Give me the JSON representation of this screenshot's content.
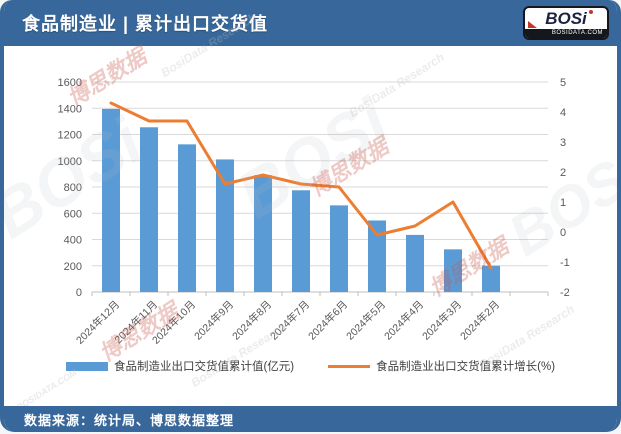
{
  "header": {
    "title": "食品制造业 | 累计出口交货值",
    "logo_text": "BOSi",
    "logo_sub": "BOSIDATA.COM"
  },
  "footer": {
    "source": "数据来源：统计局、博思数据整理"
  },
  "watermark": {
    "logo": "BOSi",
    "brand_cn": "博思数据",
    "brand_en": "BosiData Research",
    "site": "BOSIDATA.COM"
  },
  "colors": {
    "header_bg": "#38689B",
    "bar": "#5B9BD5",
    "line": "#ED7D31",
    "grid": "#D9D9D9",
    "axis_line": "#BFBFBF",
    "axis_text": "#595959",
    "watermark_red": "#C85348",
    "watermark_gray": "#B9BCC2"
  },
  "chart_data": {
    "type": "bar",
    "subtype": "bar+line combo, dual axis",
    "categories": [
      "2024年12月",
      "2024年11月",
      "2024年10月",
      "2024年9月",
      "2024年8月",
      "2024年7月",
      "2024年6月",
      "2024年5月",
      "2024年4月",
      "2024年3月",
      "2024年2月"
    ],
    "series": [
      {
        "name": "食品制造业出口交货值累计值(亿元)",
        "type": "bar",
        "axis": "left",
        "values": [
          1395,
          1255,
          1125,
          1010,
          890,
          775,
          660,
          545,
          435,
          325,
          200
        ]
      },
      {
        "name": "食品制造业出口交货值累计增长(%)",
        "type": "line",
        "axis": "right",
        "values": [
          4.3,
          3.7,
          3.7,
          1.6,
          1.9,
          1.6,
          1.5,
          -0.1,
          0.2,
          1.0,
          -1.2
        ]
      }
    ],
    "left_axis": {
      "min": 0,
      "max": 1600,
      "step": 200
    },
    "right_axis": {
      "min": -2,
      "max": 5,
      "step": 1
    },
    "grid": true,
    "legend_position": "bottom",
    "title": "食品制造业 | 累计出口交货值"
  }
}
